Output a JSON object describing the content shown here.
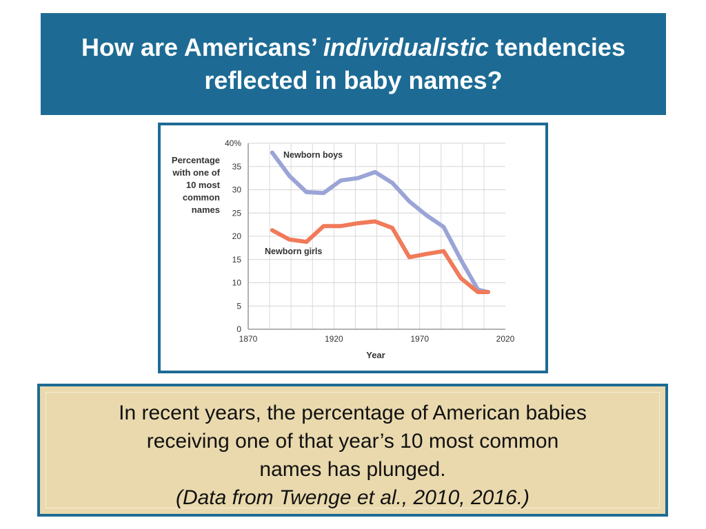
{
  "title": {
    "part1": "How are Americans’ ",
    "emphasis": "individualistic",
    "part2": " tendencies",
    "line2": "reflected in baby names?"
  },
  "caption": {
    "line1": "In recent years, the percentage of American babies",
    "line2": "receiving one of that year’s 10 most common",
    "line3": "names has plunged.",
    "source": "(Data from Twenge et al., 2010, 2016.)"
  },
  "colors": {
    "banner": "#1d6b94",
    "boys": "#9aa4d6",
    "girls": "#f07a5a",
    "caption_bg": "#e9d9ad"
  },
  "chart_data": {
    "type": "line",
    "ylabel_lines": [
      "Percentage",
      "with one of",
      "10 most",
      "common",
      "names"
    ],
    "xlabel": "Year",
    "ylim": [
      0,
      40
    ],
    "xlim": [
      1870,
      2020
    ],
    "yticks": [
      0,
      5,
      10,
      15,
      20,
      25,
      30,
      35,
      40
    ],
    "ytick_labels": [
      "0",
      "5",
      "10",
      "15",
      "20",
      "25",
      "30",
      "35",
      "40%"
    ],
    "xticks": [
      1870,
      1920,
      1970,
      2020
    ],
    "xtick_labels": [
      "1870",
      "1920",
      "1970",
      "2020"
    ],
    "grid": true,
    "series": [
      {
        "name": "Newborn boys",
        "color": "#9aa4d6",
        "x": [
          1884,
          1894,
          1904,
          1914,
          1924,
          1934,
          1944,
          1954,
          1964,
          1974,
          1984,
          1994,
          2004,
          2010
        ],
        "y": [
          38,
          33,
          29.5,
          29.3,
          32,
          32.5,
          33.8,
          31.5,
          27.5,
          24.5,
          22,
          15,
          8.5,
          8
        ]
      },
      {
        "name": "Newborn girls",
        "color": "#f07a5a",
        "x": [
          1884,
          1894,
          1904,
          1914,
          1924,
          1934,
          1944,
          1954,
          1964,
          1974,
          1984,
          1994,
          2004,
          2010
        ],
        "y": [
          21.3,
          19.3,
          18.8,
          22.2,
          22.2,
          22.8,
          23.2,
          21.8,
          15.5,
          16.2,
          16.8,
          11,
          8,
          8
        ]
      }
    ]
  }
}
